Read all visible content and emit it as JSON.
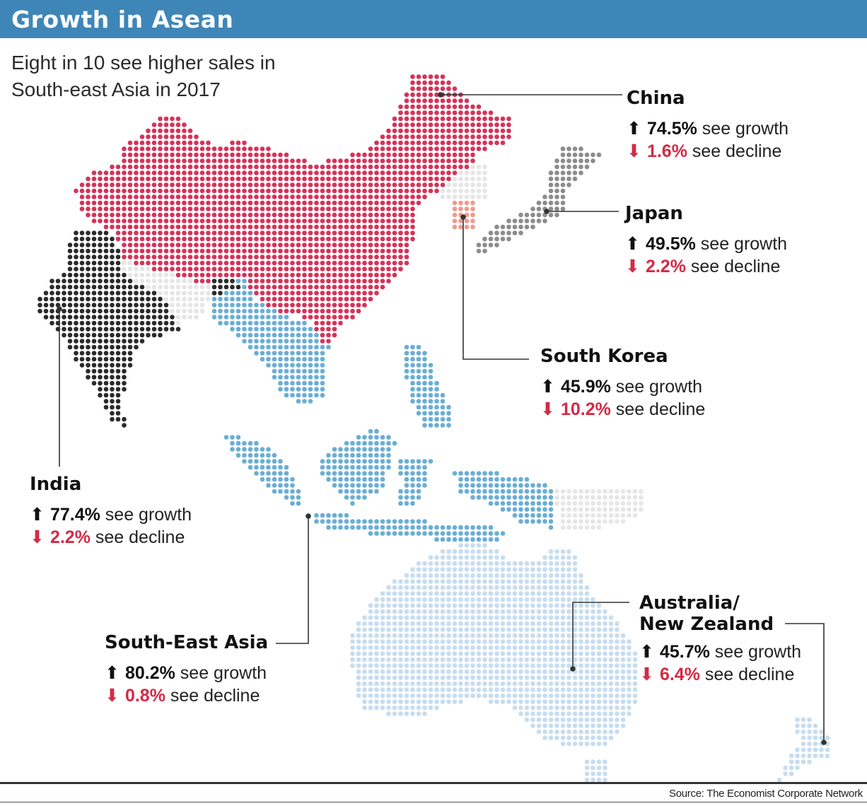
{
  "header": {
    "title": "Growth in Asean"
  },
  "subtitle": "Eight in 10 see higher sales in South-east Asia in 2017",
  "colors": {
    "header_bar": "#3f86b8",
    "china": "#d4335a",
    "india": "#2b2b2b",
    "japan": "#8c8c8c",
    "south_korea": "#ef9a8c",
    "southeast_asia": "#6aaed3",
    "australia_nz": "#c7ddef",
    "other_land": "#e6e6e6",
    "decline": "#d42a45"
  },
  "regions": {
    "china": {
      "name": "China",
      "growth": "74.5%",
      "decline": "1.6%"
    },
    "japan": {
      "name": "Japan",
      "growth": "49.5%",
      "decline": "2.2%"
    },
    "south_korea": {
      "name": "South Korea",
      "growth": "45.9%",
      "decline": "10.2%"
    },
    "india": {
      "name": "India",
      "growth": "77.4%",
      "decline": "2.2%"
    },
    "southeast_asia": {
      "name": "South-East Asia",
      "growth": "80.2%",
      "decline": "0.8%"
    },
    "australia_nz": {
      "name": "Australia/\nNew Zealand",
      "growth": "45.7%",
      "decline": "6.4%"
    }
  },
  "labels": {
    "growth_suffix": "see growth",
    "decline_suffix": "see decline",
    "arrow_up": "⬆",
    "arrow_down": "⬇"
  },
  "source": "Source: The Economist Corporate Network"
}
